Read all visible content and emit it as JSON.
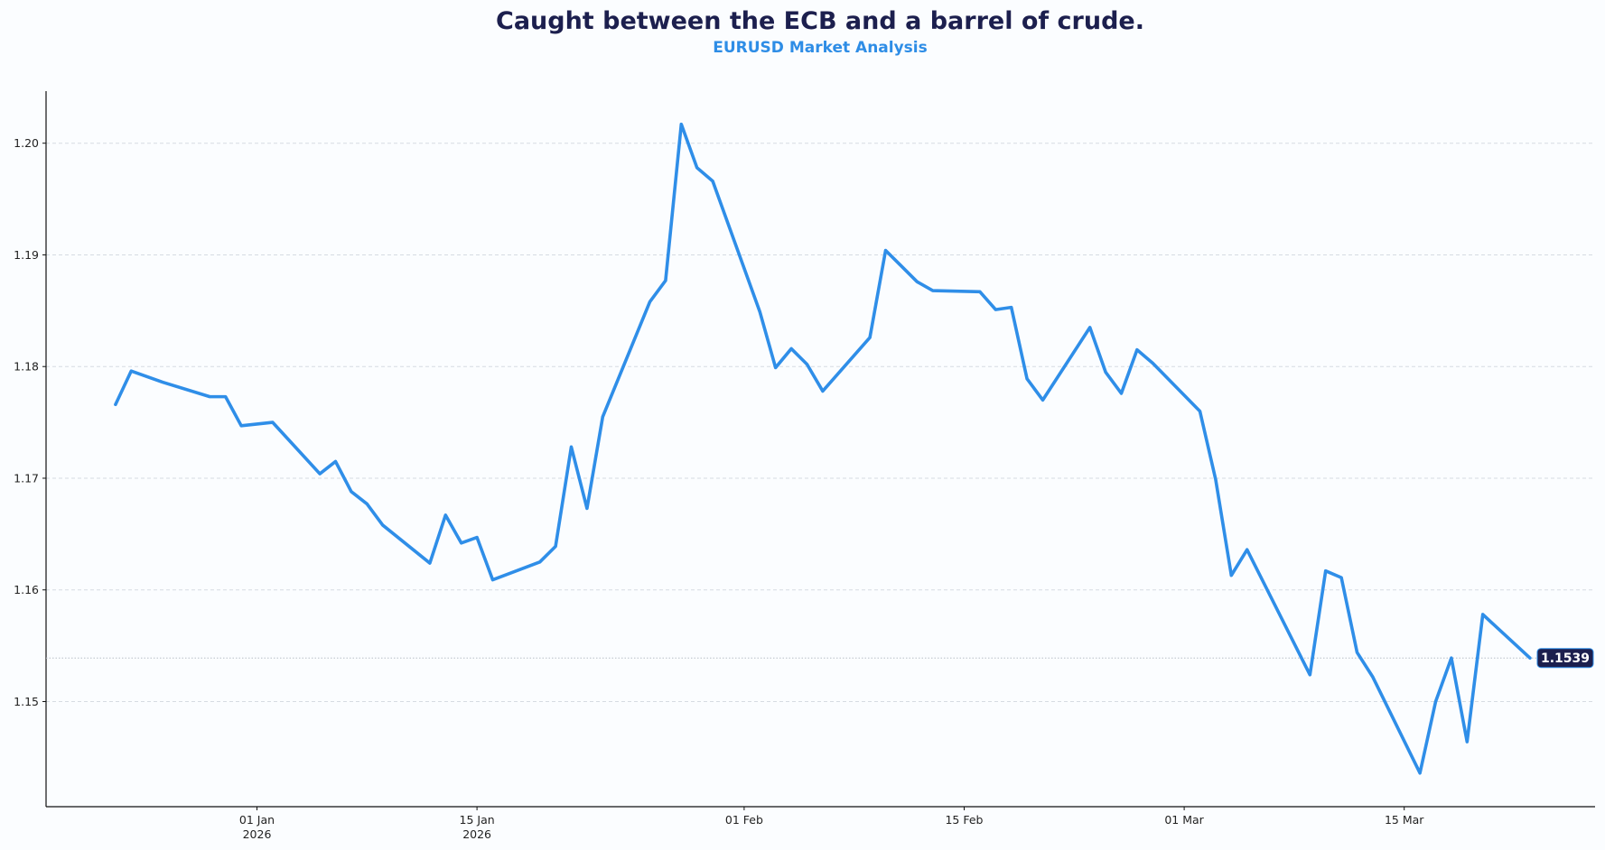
{
  "chart_data": {
    "type": "line",
    "title": "Caught between the ECB and a barrel of crude.",
    "subtitle": "EURUSD Market Analysis",
    "xlabel": "",
    "ylabel": "",
    "ylim": [
      1.1405,
      1.2047
    ],
    "xlim": [
      "2025-12-18",
      "2026-03-26"
    ],
    "grid": "horizontal dashed",
    "line_color": "#2f8ee8",
    "y_ticks": [
      "1.15",
      "1.16",
      "1.17",
      "1.18",
      "1.19",
      "1.20"
    ],
    "x_ticks": [
      {
        "date": "2026-01-01",
        "label": "01 Jan",
        "sublabel": "2026"
      },
      {
        "date": "2026-01-15",
        "label": "15 Jan",
        "sublabel": "2026"
      },
      {
        "date": "2026-02-01",
        "label": "01 Feb",
        "sublabel": ""
      },
      {
        "date": "2026-02-15",
        "label": "15 Feb",
        "sublabel": ""
      },
      {
        "date": "2026-03-01",
        "label": "01 Mar",
        "sublabel": ""
      },
      {
        "date": "2026-03-15",
        "label": "15 Mar",
        "sublabel": ""
      }
    ],
    "last_value_label": "1.1539",
    "last_value_label_color": "#1c1f4e",
    "x": [
      "2025-12-23",
      "2025-12-24",
      "2025-12-26",
      "2025-12-29",
      "2025-12-30",
      "2025-12-31",
      "2026-01-02",
      "2026-01-05",
      "2026-01-06",
      "2026-01-07",
      "2026-01-08",
      "2026-01-09",
      "2026-01-12",
      "2026-01-13",
      "2026-01-14",
      "2026-01-15",
      "2026-01-16",
      "2026-01-19",
      "2026-01-20",
      "2026-01-21",
      "2026-01-22",
      "2026-01-23",
      "2026-01-26",
      "2026-01-27",
      "2026-01-28",
      "2026-01-29",
      "2026-01-30",
      "2026-02-02",
      "2026-02-03",
      "2026-02-04",
      "2026-02-05",
      "2026-02-06",
      "2026-02-09",
      "2026-02-10",
      "2026-02-11",
      "2026-02-12",
      "2026-02-13",
      "2026-02-16",
      "2026-02-17",
      "2026-02-18",
      "2026-02-19",
      "2026-02-20",
      "2026-02-23",
      "2026-02-24",
      "2026-02-25",
      "2026-02-26",
      "2026-02-27",
      "2026-03-02",
      "2026-03-03",
      "2026-03-04",
      "2026-03-05",
      "2026-03-09",
      "2026-03-10",
      "2026-03-11",
      "2026-03-12",
      "2026-03-13",
      "2026-03-16",
      "2026-03-17",
      "2026-03-18",
      "2026-03-19",
      "2026-03-20",
      "2026-03-23"
    ],
    "series": [
      {
        "values": [
          1.1766,
          1.1796,
          1.1786,
          1.1773,
          1.1773,
          1.1747,
          1.175,
          1.1704,
          1.1715,
          1.1688,
          1.1677,
          1.1658,
          1.1624,
          1.1667,
          1.1642,
          1.1647,
          1.1609,
          1.1625,
          1.1639,
          1.1728,
          1.1673,
          1.1755,
          1.1858,
          1.1877,
          1.2017,
          1.1978,
          1.1966,
          1.1849,
          1.1799,
          1.1816,
          1.1802,
          1.1778,
          1.1826,
          1.1904,
          1.189,
          1.1876,
          1.1868,
          1.1867,
          1.1851,
          1.1853,
          1.1789,
          1.177,
          1.1835,
          1.1795,
          1.1776,
          1.1815,
          1.1803,
          1.176,
          1.1699,
          1.1613,
          1.1636,
          1.1524,
          1.1617,
          1.1611,
          1.1544,
          1.1522,
          1.1436,
          1.15,
          1.1539,
          1.1464,
          1.1578,
          1.1539
        ]
      }
    ]
  }
}
